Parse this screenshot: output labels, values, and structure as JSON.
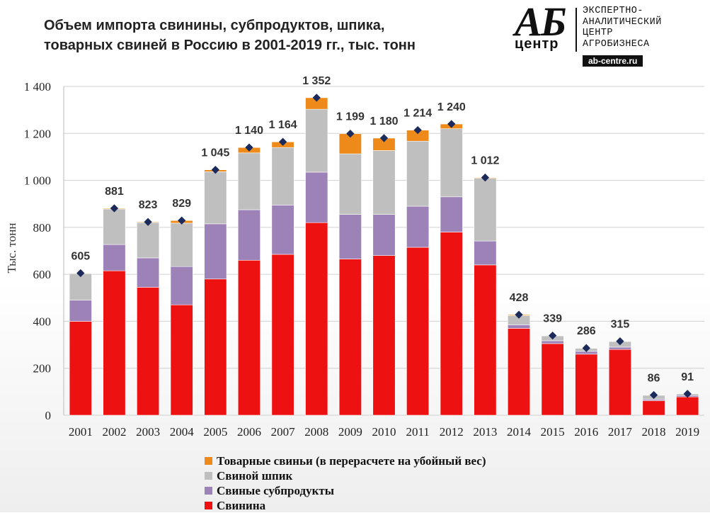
{
  "title_lines": [
    "Объем импорта свинины, субпродуктов, шпика,",
    "товарных свиней в Россию в 2001-2019 гг., тыс. тонн"
  ],
  "logo": {
    "mark_top": "АБ",
    "mark_bottom": "центр",
    "text_lines": [
      "ЭКСПЕРТНО-",
      "АНАЛИТИЧЕСКИЙ",
      "ЦЕНТР",
      "АГРОБИЗНЕСА"
    ],
    "site": "ab-centre.ru"
  },
  "chart_data": {
    "type": "bar",
    "stacked": true,
    "ylabel": "Тыс. тонн",
    "ylim": [
      0,
      1400
    ],
    "yticks": [
      0,
      200,
      400,
      600,
      800,
      1000,
      1200,
      1400
    ],
    "ytick_labels": [
      "0",
      "200",
      "400",
      "600",
      "800",
      "1 000",
      "1 200",
      "1 400"
    ],
    "categories": [
      "2001",
      "2002",
      "2003",
      "2004",
      "2005",
      "2006",
      "2007",
      "2008",
      "2009",
      "2010",
      "2011",
      "2012",
      "2013",
      "2014",
      "2015",
      "2016",
      "2017",
      "2018",
      "2019"
    ],
    "series": [
      {
        "name": "Свинина",
        "color": "#ee1111",
        "values": [
          400,
          615,
          545,
          470,
          580,
          660,
          685,
          820,
          665,
          680,
          715,
          780,
          640,
          370,
          305,
          260,
          280,
          62,
          78
        ]
      },
      {
        "name": "Свиные субпродукты",
        "color": "#9d82b8",
        "values": [
          90,
          112,
          125,
          163,
          235,
          215,
          210,
          215,
          190,
          175,
          175,
          150,
          102,
          15,
          12,
          12,
          10,
          6,
          6
        ]
      },
      {
        "name": "Свиной шпик",
        "color": "#bfbfbf",
        "values": [
          113,
          151,
          150,
          185,
          222,
          242,
          245,
          268,
          258,
          272,
          277,
          290,
          267,
          39,
          21,
          13,
          24,
          17,
          7
        ]
      },
      {
        "name": "Товарные свиньи (в перерасчете на убойный вес)",
        "color": "#ee8a1a",
        "values": [
          2,
          3,
          3,
          11,
          8,
          23,
          24,
          49,
          86,
          53,
          47,
          20,
          3,
          4,
          1,
          1,
          1,
          1,
          0
        ]
      }
    ],
    "totals": [
      605,
      881,
      823,
      829,
      1045,
      1140,
      1164,
      1352,
      1199,
      1180,
      1214,
      1240,
      1012,
      428,
      339,
      286,
      315,
      86,
      91
    ],
    "total_labels": [
      "605",
      "881",
      "823",
      "829",
      "1 045",
      "1 140",
      "1 164",
      "1 352",
      "1 199",
      "1 180",
      "1 214",
      "1 240",
      "1 012",
      "428",
      "339",
      "286",
      "315",
      "86",
      "91"
    ],
    "marker_color": "#1a2a5a",
    "legend_position": "bottom"
  }
}
